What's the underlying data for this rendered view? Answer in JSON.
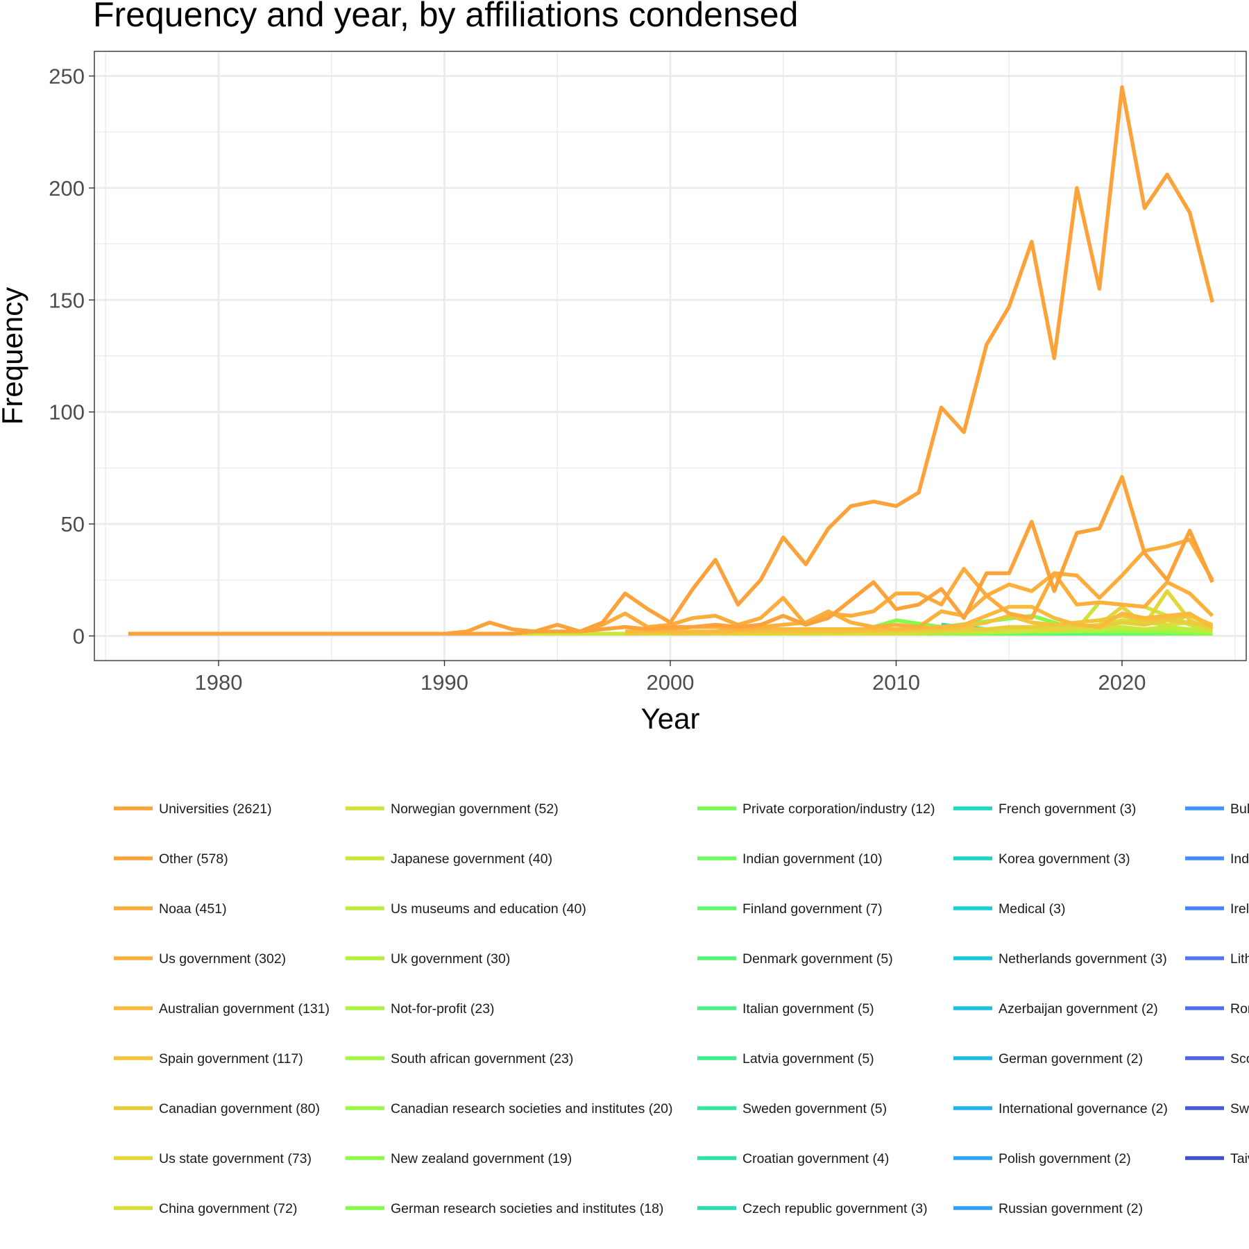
{
  "chart_data": {
    "type": "line",
    "title": "Frequency and year, by affiliations condensed",
    "xlabel": "Year",
    "ylabel": "Frequency",
    "xlim": [
      1974.5,
      2025.5
    ],
    "ylim": [
      -11,
      261
    ],
    "x_ticks": [
      1980,
      1990,
      2000,
      2010,
      2020
    ],
    "y_ticks": [
      0,
      50,
      100,
      150,
      200,
      250
    ],
    "grid": true,
    "legend_position": "bottom",
    "series": [
      {
        "name": "Universities (2621)",
        "color": "#FBA33A",
        "x": [
          1976,
          1977,
          1978,
          1979,
          1980,
          1981,
          1982,
          1983,
          1984,
          1985,
          1986,
          1987,
          1988,
          1989,
          1990,
          1991,
          1992,
          1993,
          1994,
          1995,
          1996,
          1997,
          1998,
          1999,
          2000,
          2001,
          2002,
          2003,
          2004,
          2005,
          2006,
          2007,
          2008,
          2009,
          2010,
          2011,
          2012,
          2013,
          2014,
          2015,
          2016,
          2017,
          2018,
          2019,
          2020,
          2021,
          2022,
          2023,
          2024
        ],
        "y": [
          1,
          1,
          1,
          1,
          1,
          1,
          1,
          1,
          1,
          1,
          1,
          1,
          1,
          1,
          1,
          2,
          6,
          3,
          2,
          5,
          2,
          6,
          19,
          12,
          6,
          21,
          34,
          14,
          25,
          44,
          32,
          48,
          58,
          60,
          58,
          64,
          102,
          91,
          130,
          147,
          176,
          124,
          200,
          155,
          245,
          191,
          206,
          189,
          149
        ]
      },
      {
        "name": "Other (578)",
        "color": "#FBA33A",
        "x": [
          1990,
          1991,
          1992,
          1993,
          1994,
          1995,
          1996,
          1997,
          1998,
          1999,
          2000,
          2001,
          2002,
          2003,
          2004,
          2005,
          2006,
          2007,
          2008,
          2009,
          2010,
          2011,
          2012,
          2013,
          2014,
          2015,
          2016,
          2017,
          2018,
          2019,
          2020,
          2021,
          2022,
          2023,
          2024
        ],
        "y": [
          1,
          1,
          1,
          1,
          2,
          2,
          2,
          3,
          4,
          3,
          4,
          4,
          5,
          4,
          5,
          9,
          5,
          8,
          16,
          24,
          12,
          14,
          21,
          8,
          28,
          28,
          51,
          20,
          46,
          48,
          71,
          37,
          25,
          47,
          24
        ]
      },
      {
        "name": "Noaa (451)",
        "color": "#FBAC3B",
        "x": [
          1996,
          1997,
          1998,
          1999,
          2000,
          2001,
          2002,
          2003,
          2004,
          2005,
          2006,
          2007,
          2008,
          2009,
          2010,
          2011,
          2012,
          2013,
          2014,
          2015,
          2016,
          2017,
          2018,
          2019,
          2020,
          2021,
          2022,
          2023,
          2024
        ],
        "y": [
          2,
          5,
          10,
          4,
          5,
          8,
          9,
          5,
          8,
          17,
          5,
          10,
          9,
          11,
          19,
          19,
          14,
          30,
          18,
          10,
          8,
          28,
          27,
          17,
          27,
          38,
          40,
          43,
          25
        ]
      },
      {
        "name": "Us government (302)",
        "color": "#FBB03C",
        "x": [
          1996,
          1997,
          1998,
          1999,
          2000,
          2001,
          2002,
          2003,
          2004,
          2005,
          2006,
          2007,
          2008,
          2009,
          2010,
          2011,
          2012,
          2013,
          2014,
          2015,
          2016,
          2017,
          2018,
          2019,
          2020,
          2021,
          2022,
          2023,
          2024
        ],
        "y": [
          2,
          3,
          4,
          3,
          3,
          4,
          4,
          3,
          4,
          5,
          6,
          11,
          6,
          4,
          5,
          4,
          11,
          9,
          18,
          23,
          20,
          28,
          14,
          15,
          14,
          13,
          24,
          19,
          9
        ]
      },
      {
        "name": "Australian government (131)",
        "color": "#F8B93C",
        "x": [
          1998,
          2000,
          2002,
          2004,
          2006,
          2008,
          2010,
          2012,
          2013,
          2014,
          2015,
          2016,
          2017,
          2018,
          2019,
          2020,
          2021,
          2022,
          2023,
          2024
        ],
        "y": [
          2,
          2,
          2,
          3,
          3,
          3,
          3,
          4,
          5,
          9,
          13,
          13,
          8,
          5,
          4,
          10,
          8,
          9,
          10,
          4
        ]
      },
      {
        "name": "Spain government (117)",
        "color": "#F2C43C",
        "x": [
          2000,
          2004,
          2008,
          2010,
          2012,
          2013,
          2014,
          2015,
          2016,
          2017,
          2018,
          2019,
          2020,
          2021,
          2022,
          2023,
          2024
        ],
        "y": [
          1,
          2,
          2,
          3,
          3,
          4,
          6,
          9,
          6,
          5,
          6,
          7,
          9,
          7,
          8,
          9,
          5
        ]
      },
      {
        "name": "Canadian government (80)",
        "color": "#E9CC3C",
        "x": [
          1998,
          2002,
          2006,
          2010,
          2012,
          2014,
          2015,
          2016,
          2017,
          2018,
          2019,
          2020,
          2021,
          2022,
          2023,
          2024
        ],
        "y": [
          1,
          2,
          2,
          2,
          3,
          3,
          4,
          4,
          5,
          5,
          4,
          6,
          5,
          7,
          6,
          4
        ]
      },
      {
        "name": "Us state government (73)",
        "color": "#E3D63B",
        "x": [
          2000,
          2004,
          2008,
          2010,
          2012,
          2014,
          2016,
          2017,
          2018,
          2019,
          2020,
          2021,
          2022,
          2023,
          2024
        ],
        "y": [
          1,
          1,
          2,
          2,
          2,
          3,
          4,
          3,
          4,
          5,
          13,
          5,
          20,
          7,
          3
        ]
      },
      {
        "name": "China government (72)",
        "color": "#D9DF3A",
        "x": [
          2004,
          2008,
          2010,
          2012,
          2014,
          2016,
          2017,
          2018,
          2019,
          2020,
          2021,
          2022,
          2023,
          2024
        ],
        "y": [
          1,
          1,
          1,
          2,
          3,
          3,
          4,
          4,
          5,
          7,
          6,
          5,
          6,
          4
        ]
      },
      {
        "name": "Norwegian government (52)",
        "color": "#CFE43A",
        "x": [
          1992,
          1996,
          2000,
          2004,
          2008,
          2012,
          2014,
          2016,
          2018,
          2019,
          2020,
          2021,
          2022,
          2023,
          2024
        ],
        "y": [
          1,
          1,
          1,
          1,
          2,
          2,
          2,
          3,
          3,
          15,
          14,
          13,
          9,
          5,
          2
        ]
      },
      {
        "name": "Japanese government (40)",
        "color": "#C6E83B",
        "x": [
          2000,
          2004,
          2008,
          2012,
          2016,
          2018,
          2019,
          2020,
          2021,
          2022,
          2023,
          2024
        ],
        "y": [
          1,
          1,
          2,
          2,
          2,
          3,
          3,
          4,
          3,
          4,
          10,
          3
        ]
      },
      {
        "name": "Us museums and education (40)",
        "color": "#BEEC3D",
        "x": [
          2000,
          2004,
          2008,
          2012,
          2016,
          2018,
          2020,
          2021,
          2022,
          2023,
          2024
        ],
        "y": [
          1,
          1,
          2,
          2,
          3,
          3,
          4,
          3,
          4,
          3,
          2
        ]
      },
      {
        "name": "Uk government (30)",
        "color": "#B5EF3E",
        "x": [
          2002,
          2006,
          2010,
          2014,
          2016,
          2018,
          2020,
          2022,
          2024
        ],
        "y": [
          1,
          1,
          2,
          2,
          2,
          3,
          3,
          3,
          2
        ]
      },
      {
        "name": "Not-for-profit (23)",
        "color": "#ABF340",
        "x": [
          2004,
          2008,
          2012,
          2016,
          2020,
          2022,
          2024
        ],
        "y": [
          1,
          1,
          2,
          2,
          3,
          3,
          2
        ]
      },
      {
        "name": "South african government (23)",
        "color": "#A2F542",
        "x": [
          2006,
          2010,
          2014,
          2018,
          2020,
          2022,
          2024
        ],
        "y": [
          1,
          2,
          2,
          2,
          3,
          3,
          2
        ]
      },
      {
        "name": "Canadian research societies and institutes (20)",
        "color": "#98F845",
        "x": [
          2008,
          2012,
          2016,
          2018,
          2020,
          2022,
          2024
        ],
        "y": [
          1,
          1,
          2,
          2,
          3,
          2,
          2
        ]
      },
      {
        "name": "New zealand government (19)",
        "color": "#8EFA48",
        "x": [
          2008,
          2012,
          2016,
          2018,
          2020,
          2022,
          2024
        ],
        "y": [
          1,
          1,
          2,
          2,
          2,
          2,
          1
        ]
      },
      {
        "name": "German research societies and institutes (18)",
        "color": "#85FB4C",
        "x": [
          2008,
          2010,
          2012,
          2016,
          2018,
          2020,
          2022,
          2024
        ],
        "y": [
          1,
          7,
          4,
          9,
          3,
          3,
          2,
          1
        ]
      },
      {
        "name": "Private corporation/industry (12)",
        "color": "#79FB55",
        "x": [
          2010,
          2012,
          2014,
          2016,
          2018,
          2020,
          2022,
          2024
        ],
        "y": [
          1,
          1,
          2,
          2,
          2,
          2,
          2,
          1
        ]
      },
      {
        "name": "Indian government (10)",
        "color": "#6DFB60",
        "x": [
          2012,
          2014,
          2016,
          2018,
          2020,
          2022,
          2024
        ],
        "y": [
          1,
          1,
          2,
          2,
          2,
          1,
          1
        ]
      },
      {
        "name": "Finland government (7)",
        "color": "#62F86C",
        "x": [
          2012,
          2016,
          2018,
          2020,
          2022,
          2024
        ],
        "y": [
          1,
          1,
          2,
          1,
          1,
          1
        ]
      },
      {
        "name": "Denmark government (5)",
        "color": "#56F479",
        "x": [
          2014,
          2016,
          2018,
          2020,
          2022
        ],
        "y": [
          1,
          1,
          1,
          1,
          1
        ]
      },
      {
        "name": "Italian government (5)",
        "color": "#4BEF85",
        "x": [
          2014,
          2016,
          2018,
          2020,
          2022
        ],
        "y": [
          1,
          1,
          1,
          1,
          1
        ]
      },
      {
        "name": "Latvia government (5)",
        "color": "#40EA91",
        "x": [
          2014,
          2016,
          2018,
          2020,
          2022
        ],
        "y": [
          1,
          1,
          1,
          1,
          1
        ]
      },
      {
        "name": "Sweden government (5)",
        "color": "#37E59D",
        "x": [
          2014,
          2016,
          2018,
          2020,
          2022
        ],
        "y": [
          1,
          1,
          1,
          1,
          1
        ]
      },
      {
        "name": "Croatian government (4)",
        "color": "#2FE1A8",
        "x": [
          2016,
          2018,
          2020,
          2022
        ],
        "y": [
          1,
          1,
          1,
          1
        ]
      },
      {
        "name": "Czech republic government (3)",
        "color": "#28DCB2",
        "x": [
          2018,
          2020,
          2022
        ],
        "y": [
          1,
          1,
          1
        ]
      },
      {
        "name": "French government (3)",
        "color": "#22D8BC",
        "x": [
          2012,
          2016,
          2020
        ],
        "y": [
          5,
          1,
          1
        ]
      },
      {
        "name": "Korea government (3)",
        "color": "#1ED3C6",
        "x": [
          2016,
          2018,
          2020
        ],
        "y": [
          1,
          1,
          1
        ]
      },
      {
        "name": "Medical (3)",
        "color": "#1BCECF",
        "x": [
          2016,
          2018,
          2020
        ],
        "y": [
          1,
          1,
          1
        ]
      },
      {
        "name": "Netherlands government (3)",
        "color": "#1AC8D8",
        "x": [
          2016,
          2018,
          2020
        ],
        "y": [
          1,
          1,
          1
        ]
      },
      {
        "name": "Azerbaijan government (2)",
        "color": "#1CC1DF",
        "x": [
          2018,
          2020
        ],
        "y": [
          1,
          1
        ]
      },
      {
        "name": "German government (2)",
        "color": "#20B9E6",
        "x": [
          2018,
          2020
        ],
        "y": [
          1,
          1
        ]
      },
      {
        "name": "International governance (2)",
        "color": "#25B1EC",
        "x": [
          2018,
          2020
        ],
        "y": [
          1,
          1
        ]
      },
      {
        "name": "Polish government (2)",
        "color": "#2CA8F1",
        "x": [
          2018,
          2020
        ],
        "y": [
          1,
          1
        ]
      },
      {
        "name": "Russian government (2)",
        "color": "#349FF5",
        "x": [
          2018,
          2020
        ],
        "y": [
          1,
          1
        ]
      },
      {
        "name": "Bul",
        "color": "#3D96F7",
        "x": [
          1996,
          2000,
          2004,
          2008,
          2012,
          2016,
          2020,
          2024
        ],
        "y": [
          1,
          1,
          1,
          1,
          1,
          1,
          1,
          1
        ]
      },
      {
        "name": "Ind",
        "color": "#448CF7",
        "x": [
          2012,
          2016,
          2020,
          2024
        ],
        "y": [
          2,
          2,
          2,
          2
        ]
      },
      {
        "name": "Irel",
        "color": "#4A83F6",
        "x": [
          2016,
          2020,
          2024
        ],
        "y": [
          1,
          1,
          1
        ]
      },
      {
        "name": "Lith",
        "color": "#4E79F2",
        "x": [
          2016,
          2020,
          2024
        ],
        "y": [
          1,
          1,
          1
        ]
      },
      {
        "name": "Ror",
        "color": "#506FEA",
        "x": [
          2016,
          2020,
          2024
        ],
        "y": [
          1,
          1,
          1
        ]
      },
      {
        "name": "Sco",
        "color": "#4F65DF",
        "x": [
          2016,
          2020,
          2024
        ],
        "y": [
          1,
          1,
          1
        ]
      },
      {
        "name": "Sw",
        "color": "#4A5BD2",
        "x": [
          2016,
          2020,
          2024
        ],
        "y": [
          1,
          1,
          1
        ]
      },
      {
        "name": "Taiv",
        "color": "#4351C3",
        "x": [
          2016,
          2020,
          2024
        ],
        "y": [
          1,
          1,
          1
        ]
      }
    ]
  }
}
